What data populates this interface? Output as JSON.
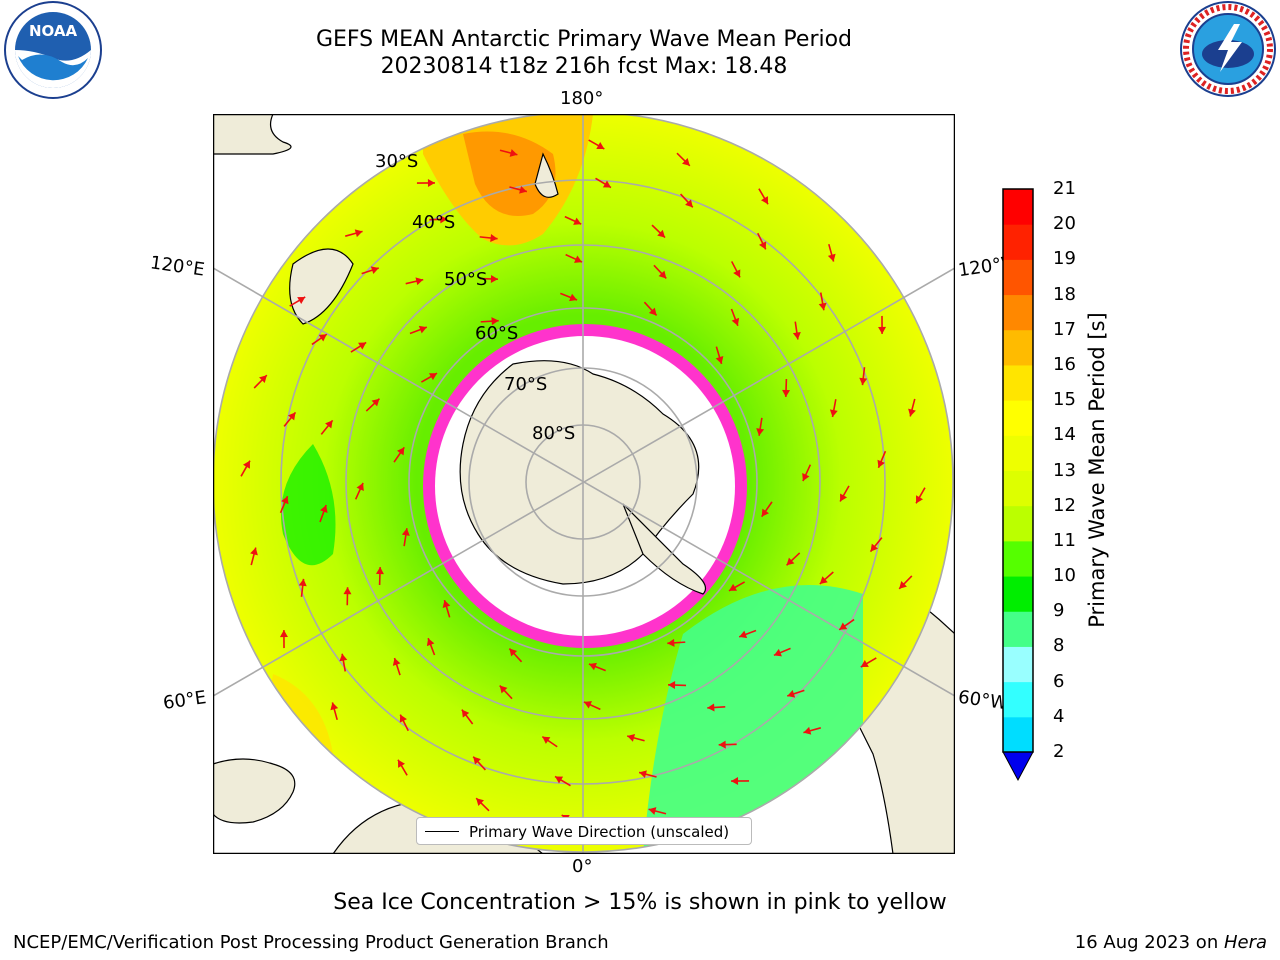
{
  "title": {
    "line1": "GEFS MEAN Antarctic Primary Wave Mean Period",
    "line2": "20230814 t18z 216h fcst   Max: 18.48"
  },
  "logos": {
    "noaa_text": "NOAA",
    "noaa_ring": "NATIONAL OCEANIC AND ATMOSPHERIC ADMINISTRATION · U.S. DEPARTMENT OF COMMERCE",
    "nws_ring": "NATIONAL WEATHER SERVICE"
  },
  "map": {
    "lat_labels": [
      "30°S",
      "40°S",
      "50°S",
      "60°S",
      "70°S",
      "80°S"
    ],
    "lon_labels": {
      "top": "180°",
      "bottom": "0°",
      "upper_left": "120°E",
      "upper_right": "120°W",
      "lower_left": "60°E",
      "lower_right": "60°W"
    },
    "legend_label": "Primary Wave Direction (unscaled)",
    "colors": {
      "land": "#efecd9",
      "ocean_green": "#66ee00",
      "yellow": "#ffff00",
      "ice": "#ffffff",
      "ice_edge": "#ff33cc",
      "arrow": "#ee1111"
    }
  },
  "colorbar": {
    "label": "Primary Wave Mean Period [s]",
    "ticks": [
      "2",
      "4",
      "6",
      "8",
      "9",
      "10",
      "11",
      "12",
      "13",
      "14",
      "15",
      "16",
      "17",
      "18",
      "19",
      "20",
      "21"
    ],
    "colors": [
      "#0080ff",
      "#00ddff",
      "#33ffff",
      "#99ffff",
      "#44ff88",
      "#00ee00",
      "#55ff00",
      "#bbff00",
      "#ddff00",
      "#eeff00",
      "#ffff00",
      "#ffe500",
      "#ffbb00",
      "#ff8800",
      "#ff5500",
      "#ff2200",
      "#ff0000"
    ],
    "extend_color": "#0000ee"
  },
  "note": "Sea Ice Concentration > 15% is shown in pink to yellow",
  "footer": {
    "left": "NCEP/EMC/Verification Post Processing Product Generation Branch",
    "date": "16 Aug 2023 on ",
    "machine": "Hera"
  }
}
